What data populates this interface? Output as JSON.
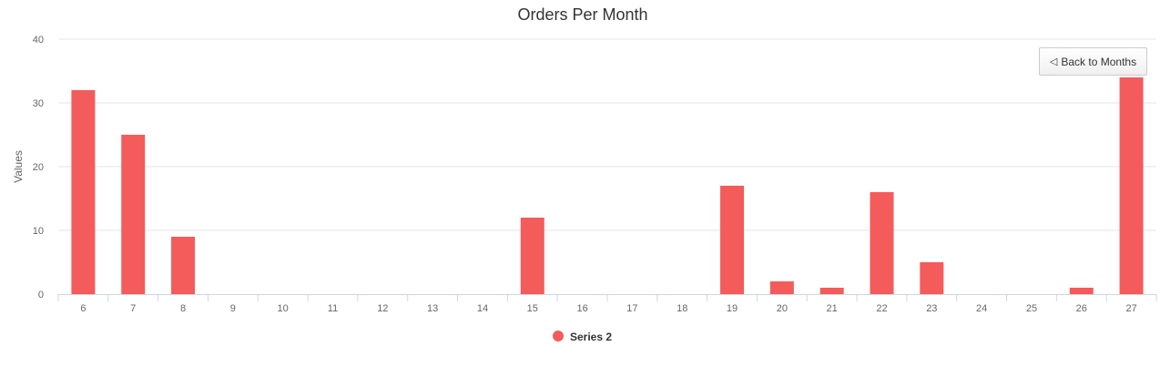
{
  "chart_data": {
    "type": "bar",
    "title": "Orders Per Month",
    "xlabel": "",
    "ylabel": "Values",
    "ylim": [
      0,
      40
    ],
    "yticks": [
      0,
      10,
      20,
      30,
      40
    ],
    "grid": true,
    "legend_position": "bottom-center",
    "categories": [
      "6",
      "7",
      "8",
      "9",
      "10",
      "11",
      "12",
      "13",
      "14",
      "15",
      "16",
      "17",
      "18",
      "19",
      "20",
      "21",
      "22",
      "23",
      "24",
      "25",
      "26",
      "27"
    ],
    "series": [
      {
        "name": "Series 2",
        "color": "#f45b5b",
        "values": [
          32,
          25,
          9,
          0,
          0,
          0,
          0,
          0,
          0,
          12,
          0,
          0,
          0,
          17,
          2,
          1,
          16,
          5,
          0,
          0,
          1,
          34
        ]
      }
    ]
  },
  "drilldown": {
    "back_label": "Back to Months",
    "back_icon": "triangle-left-icon"
  }
}
